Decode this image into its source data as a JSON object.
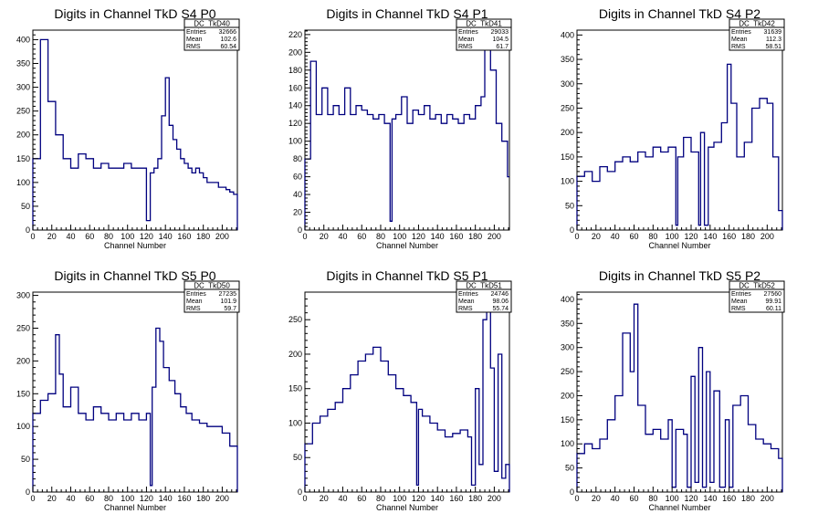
{
  "chart_data": [
    {
      "type": "histogram-step",
      "title": "Digits in Channel TkD S4 P0",
      "xlabel": "Channel Number",
      "xlim": [
        0,
        216
      ],
      "ylim": [
        0,
        420
      ],
      "xticks": [
        0,
        20,
        40,
        60,
        80,
        100,
        120,
        140,
        160,
        180,
        200
      ],
      "yticks": [
        0,
        50,
        100,
        150,
        200,
        250,
        300,
        350,
        400
      ],
      "stats": {
        "name": "DC_TkD40",
        "entries_label": "Entries",
        "entries": "32666",
        "mean_label": "Mean",
        "mean": "102.6",
        "rms_label": "RMS",
        "rms": "60.54"
      },
      "x": [
        0,
        8,
        16,
        24,
        32,
        40,
        48,
        56,
        64,
        72,
        80,
        88,
        96,
        104,
        112,
        118,
        120,
        124,
        128,
        132,
        136,
        140,
        144,
        148,
        152,
        156,
        160,
        164,
        168,
        172,
        176,
        180,
        184,
        188,
        192,
        196,
        200,
        204,
        208,
        212,
        216
      ],
      "values": [
        150,
        400,
        270,
        200,
        150,
        130,
        160,
        150,
        130,
        140,
        130,
        130,
        140,
        130,
        130,
        130,
        20,
        120,
        130,
        150,
        240,
        320,
        220,
        190,
        170,
        150,
        140,
        130,
        120,
        130,
        120,
        110,
        100,
        100,
        100,
        90,
        90,
        85,
        80,
        75,
        0
      ]
    },
    {
      "type": "histogram-step",
      "title": "Digits in Channel TkD S4 P1",
      "xlabel": "Channel Number",
      "xlim": [
        0,
        216
      ],
      "ylim": [
        0,
        225
      ],
      "xticks": [
        0,
        20,
        40,
        60,
        80,
        100,
        120,
        140,
        160,
        180,
        200
      ],
      "yticks": [
        0,
        20,
        40,
        60,
        80,
        100,
        120,
        140,
        160,
        180,
        200,
        220
      ],
      "stats": {
        "name": "DC_TkD41",
        "entries_label": "Entries",
        "entries": "29033",
        "mean_label": "Mean",
        "mean": "104.5",
        "rms_label": "RMS",
        "rms": "61.7"
      },
      "x": [
        0,
        6,
        12,
        18,
        24,
        30,
        36,
        42,
        48,
        54,
        60,
        66,
        72,
        78,
        84,
        90,
        92,
        96,
        102,
        108,
        114,
        120,
        126,
        132,
        138,
        144,
        150,
        156,
        162,
        168,
        174,
        180,
        186,
        190,
        196,
        202,
        208,
        214
      ],
      "values": [
        80,
        190,
        130,
        160,
        130,
        140,
        130,
        160,
        130,
        140,
        135,
        130,
        125,
        130,
        120,
        10,
        125,
        130,
        150,
        120,
        135,
        130,
        140,
        125,
        130,
        120,
        130,
        125,
        120,
        130,
        125,
        140,
        150,
        210,
        180,
        120,
        100,
        60
      ]
    },
    {
      "type": "histogram-step",
      "title": "Digits in Channel TkD S4 P2",
      "xlabel": "Channel Number",
      "xlim": [
        0,
        216
      ],
      "ylim": [
        0,
        410
      ],
      "xticks": [
        0,
        20,
        40,
        60,
        80,
        100,
        120,
        140,
        160,
        180,
        200
      ],
      "yticks": [
        0,
        50,
        100,
        150,
        200,
        250,
        300,
        350,
        400
      ],
      "stats": {
        "name": "DC_TkD42",
        "entries_label": "Entries",
        "entries": "31639",
        "mean_label": "Mean",
        "mean": "112.3",
        "rms_label": "RMS",
        "rms": "58.51"
      },
      "x": [
        0,
        8,
        16,
        24,
        32,
        40,
        48,
        56,
        64,
        72,
        80,
        88,
        96,
        104,
        106,
        112,
        120,
        128,
        130,
        134,
        138,
        144,
        152,
        158,
        162,
        168,
        176,
        184,
        192,
        200,
        206,
        212,
        216
      ],
      "values": [
        110,
        120,
        100,
        130,
        120,
        140,
        150,
        140,
        160,
        150,
        170,
        160,
        170,
        10,
        150,
        190,
        160,
        10,
        200,
        10,
        170,
        180,
        220,
        340,
        260,
        150,
        180,
        250,
        270,
        260,
        150,
        40,
        0
      ]
    },
    {
      "type": "histogram-step",
      "title": "Digits in Channel TkD S5 P0",
      "xlabel": "Channel Number",
      "xlim": [
        0,
        216
      ],
      "ylim": [
        0,
        305
      ],
      "xticks": [
        0,
        20,
        40,
        60,
        80,
        100,
        120,
        140,
        160,
        180,
        200
      ],
      "yticks": [
        0,
        50,
        100,
        150,
        200,
        250,
        300
      ],
      "stats": {
        "name": "DC_TkD50",
        "entries_label": "Entries",
        "entries": "27235",
        "mean_label": "Mean",
        "mean": "101.9",
        "rms_label": "RMS",
        "rms": "59.7"
      },
      "x": [
        0,
        8,
        16,
        24,
        28,
        32,
        40,
        48,
        56,
        64,
        72,
        80,
        88,
        96,
        104,
        112,
        120,
        124,
        126,
        130,
        134,
        138,
        144,
        150,
        156,
        162,
        168,
        176,
        184,
        192,
        200,
        208,
        216
      ],
      "values": [
        120,
        140,
        150,
        240,
        180,
        130,
        160,
        120,
        110,
        130,
        120,
        110,
        120,
        110,
        120,
        110,
        120,
        10,
        160,
        250,
        230,
        190,
        170,
        150,
        130,
        120,
        110,
        105,
        100,
        100,
        90,
        70,
        0
      ]
    },
    {
      "type": "histogram-step",
      "title": "Digits in Channel TkD S5 P1",
      "xlabel": "Channel Number",
      "xlim": [
        0,
        216
      ],
      "ylim": [
        0,
        290
      ],
      "xticks": [
        0,
        20,
        40,
        60,
        80,
        100,
        120,
        140,
        160,
        180,
        200
      ],
      "yticks": [
        0,
        50,
        100,
        150,
        200,
        250
      ],
      "stats": {
        "name": "DC_TkD51",
        "entries_label": "Entries",
        "entries": "24746",
        "mean_label": "Mean",
        "mean": "98.06",
        "rms_label": "RMS",
        "rms": "55.74"
      },
      "x": [
        0,
        8,
        16,
        24,
        32,
        40,
        48,
        56,
        64,
        72,
        80,
        88,
        96,
        104,
        112,
        118,
        120,
        124,
        132,
        140,
        148,
        156,
        164,
        172,
        176,
        180,
        184,
        188,
        192,
        196,
        200,
        204,
        208,
        212,
        216
      ],
      "values": [
        70,
        100,
        110,
        120,
        130,
        150,
        170,
        190,
        200,
        210,
        190,
        170,
        150,
        140,
        130,
        10,
        120,
        110,
        100,
        90,
        80,
        85,
        90,
        80,
        10,
        150,
        40,
        250,
        290,
        180,
        30,
        200,
        20,
        40,
        0
      ]
    },
    {
      "type": "histogram-step",
      "title": "Digits in Channel TkD S5 P2",
      "xlabel": "Channel Number",
      "xlim": [
        0,
        216
      ],
      "ylim": [
        0,
        415
      ],
      "xticks": [
        0,
        20,
        40,
        60,
        80,
        100,
        120,
        140,
        160,
        180,
        200
      ],
      "yticks": [
        0,
        50,
        100,
        150,
        200,
        250,
        300,
        350,
        400
      ],
      "stats": {
        "name": "DC_TkD52",
        "entries_label": "Entries",
        "entries": "27560",
        "mean_label": "Mean",
        "mean": "99.91",
        "rms_label": "RMS",
        "rms": "60.11"
      },
      "x": [
        0,
        8,
        16,
        24,
        32,
        40,
        48,
        56,
        60,
        64,
        72,
        80,
        88,
        96,
        100,
        104,
        112,
        116,
        120,
        124,
        128,
        132,
        136,
        140,
        144,
        150,
        156,
        160,
        164,
        172,
        180,
        188,
        196,
        204,
        212,
        216
      ],
      "values": [
        80,
        100,
        90,
        110,
        150,
        200,
        330,
        250,
        390,
        180,
        120,
        130,
        110,
        150,
        10,
        130,
        120,
        10,
        240,
        20,
        300,
        10,
        250,
        20,
        210,
        10,
        150,
        10,
        180,
        200,
        140,
        110,
        100,
        90,
        70,
        0
      ]
    }
  ]
}
